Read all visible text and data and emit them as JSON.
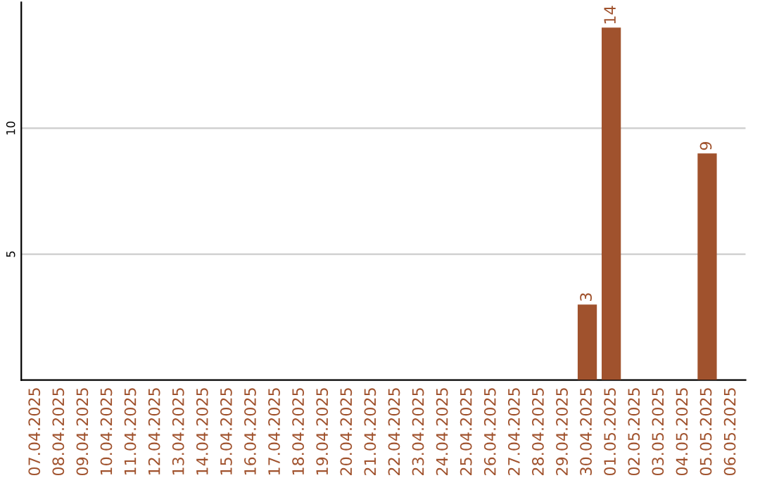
{
  "chart_data": {
    "type": "bar",
    "categories": [
      "07.04.2025",
      "08.04.2025",
      "09.04.2025",
      "10.04.2025",
      "11.04.2025",
      "12.04.2025",
      "13.04.2025",
      "14.04.2025",
      "15.04.2025",
      "16.04.2025",
      "17.04.2025",
      "18.04.2025",
      "19.04.2025",
      "20.04.2025",
      "21.04.2025",
      "22.04.2025",
      "23.04.2025",
      "24.04.2025",
      "25.04.2025",
      "26.04.2025",
      "27.04.2025",
      "28.04.2025",
      "29.04.2025",
      "30.04.2025",
      "01.05.2025",
      "02.05.2025",
      "03.05.2025",
      "04.05.2025",
      "05.05.2025",
      "06.05.2025"
    ],
    "values": [
      null,
      null,
      null,
      null,
      null,
      null,
      null,
      null,
      null,
      null,
      null,
      null,
      null,
      null,
      null,
      null,
      null,
      null,
      null,
      null,
      null,
      null,
      null,
      3,
      14,
      null,
      null,
      null,
      9,
      null
    ],
    "color": "#a0522d",
    "ylim": [
      0,
      15
    ],
    "yticks": [
      5,
      10
    ],
    "grid": "y",
    "data_labels": true
  }
}
